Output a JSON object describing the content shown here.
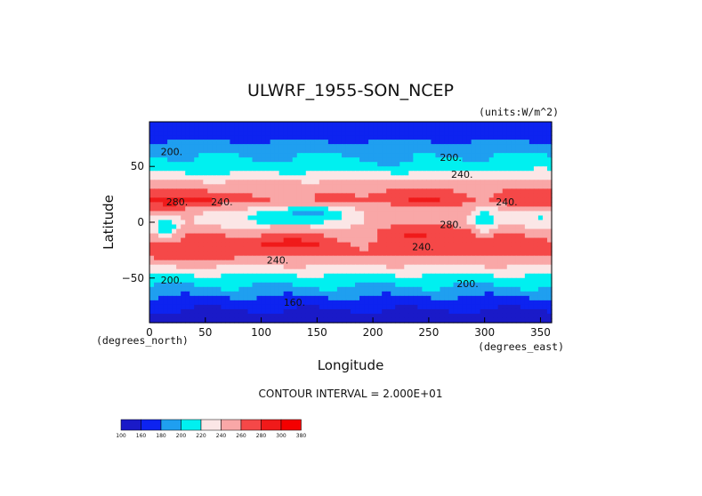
{
  "chart_data": {
    "type": "heatmap",
    "title": "ULWRF_1955-SON_NCEP",
    "units": "(units:W/m^2)",
    "xlabel": "Longitude",
    "ylabel": "Latitude",
    "x_unit_label": "(degrees_east)",
    "y_unit_label": "(degrees_north)",
    "xlim": [
      0,
      360
    ],
    "ylim": [
      -90,
      90
    ],
    "x_ticks": [
      0,
      50,
      100,
      150,
      200,
      250,
      300,
      350
    ],
    "y_ticks": [
      50,
      0,
      -50
    ],
    "contour_interval_text": "CONTOUR INTERVAL = 2.000E+01",
    "contour_labels": [
      "200.",
      "200.",
      "240.",
      "280.",
      "240.",
      "280.",
      "240.",
      "240.",
      "240.",
      "200.",
      "200.",
      "160."
    ],
    "colorbar": {
      "boundaries": [
        "100",
        "160",
        "180",
        "200",
        "220",
        "240",
        "260",
        "280",
        "300",
        "380"
      ],
      "colors": [
        "#1a1ac8",
        "#0d23f0",
        "#1f9ff0",
        "#00f0f0",
        "#fbe6e6",
        "#f9a7a7",
        "#f54848",
        "#f01a1a",
        "#f40000"
      ]
    },
    "lat_profile": [
      {
        "lat": 90,
        "v": 165
      },
      {
        "lat": 80,
        "v": 168
      },
      {
        "lat": 70,
        "v": 185
      },
      {
        "lat": 60,
        "v": 200
      },
      {
        "lat": 50,
        "v": 212
      },
      {
        "lat": 40,
        "v": 232
      },
      {
        "lat": 30,
        "v": 255
      },
      {
        "lat": 20,
        "v": 262
      },
      {
        "lat": 10,
        "v": 242
      },
      {
        "lat": 0,
        "v": 238
      },
      {
        "lat": -10,
        "v": 258
      },
      {
        "lat": -20,
        "v": 270
      },
      {
        "lat": -30,
        "v": 262
      },
      {
        "lat": -40,
        "v": 238
      },
      {
        "lat": -50,
        "v": 212
      },
      {
        "lat": -60,
        "v": 195
      },
      {
        "lat": -70,
        "v": 172
      },
      {
        "lat": -80,
        "v": 158
      },
      {
        "lat": -90,
        "v": 152
      }
    ],
    "anomalies": [
      {
        "lon": 20,
        "lat": 18,
        "dlon": 25,
        "dlat": 10,
        "amp": 28
      },
      {
        "lon": 50,
        "lat": 18,
        "dlon": 14,
        "dlat": 6,
        "amp": 22
      },
      {
        "lon": 15,
        "lat": -5,
        "dlon": 12,
        "dlat": 10,
        "amp": -45
      },
      {
        "lon": 110,
        "lat": 5,
        "dlon": 30,
        "dlat": 8,
        "amp": -38
      },
      {
        "lon": 155,
        "lat": 8,
        "dlon": 30,
        "dlat": 7,
        "amp": -35
      },
      {
        "lon": 300,
        "lat": 0,
        "dlon": 12,
        "dlat": 12,
        "amp": -40
      },
      {
        "lon": 240,
        "lat": 20,
        "dlon": 30,
        "dlat": 9,
        "amp": 22
      },
      {
        "lon": 250,
        "lat": -8,
        "dlon": 40,
        "dlat": 10,
        "amp": 25
      },
      {
        "lon": 120,
        "lat": -20,
        "dlon": 35,
        "dlat": 7,
        "amp": 18
      },
      {
        "lon": 330,
        "lat": 20,
        "dlon": 20,
        "dlat": 8,
        "amp": 15
      },
      {
        "lon": 40,
        "lat": -30,
        "dlon": 35,
        "dlat": 8,
        "amp": 8
      },
      {
        "lon": 190,
        "lat": -15,
        "dlon": 25,
        "dlat": 10,
        "amp": -12
      },
      {
        "lon": 80,
        "lat": 50,
        "dlon": 40,
        "dlat": 8,
        "amp": -10
      },
      {
        "lon": 230,
        "lat": 55,
        "dlon": 40,
        "dlat": 8,
        "amp": -8
      },
      {
        "lon": 350,
        "lat": 5,
        "dlon": 10,
        "dlat": 8,
        "amp": -20
      }
    ]
  }
}
